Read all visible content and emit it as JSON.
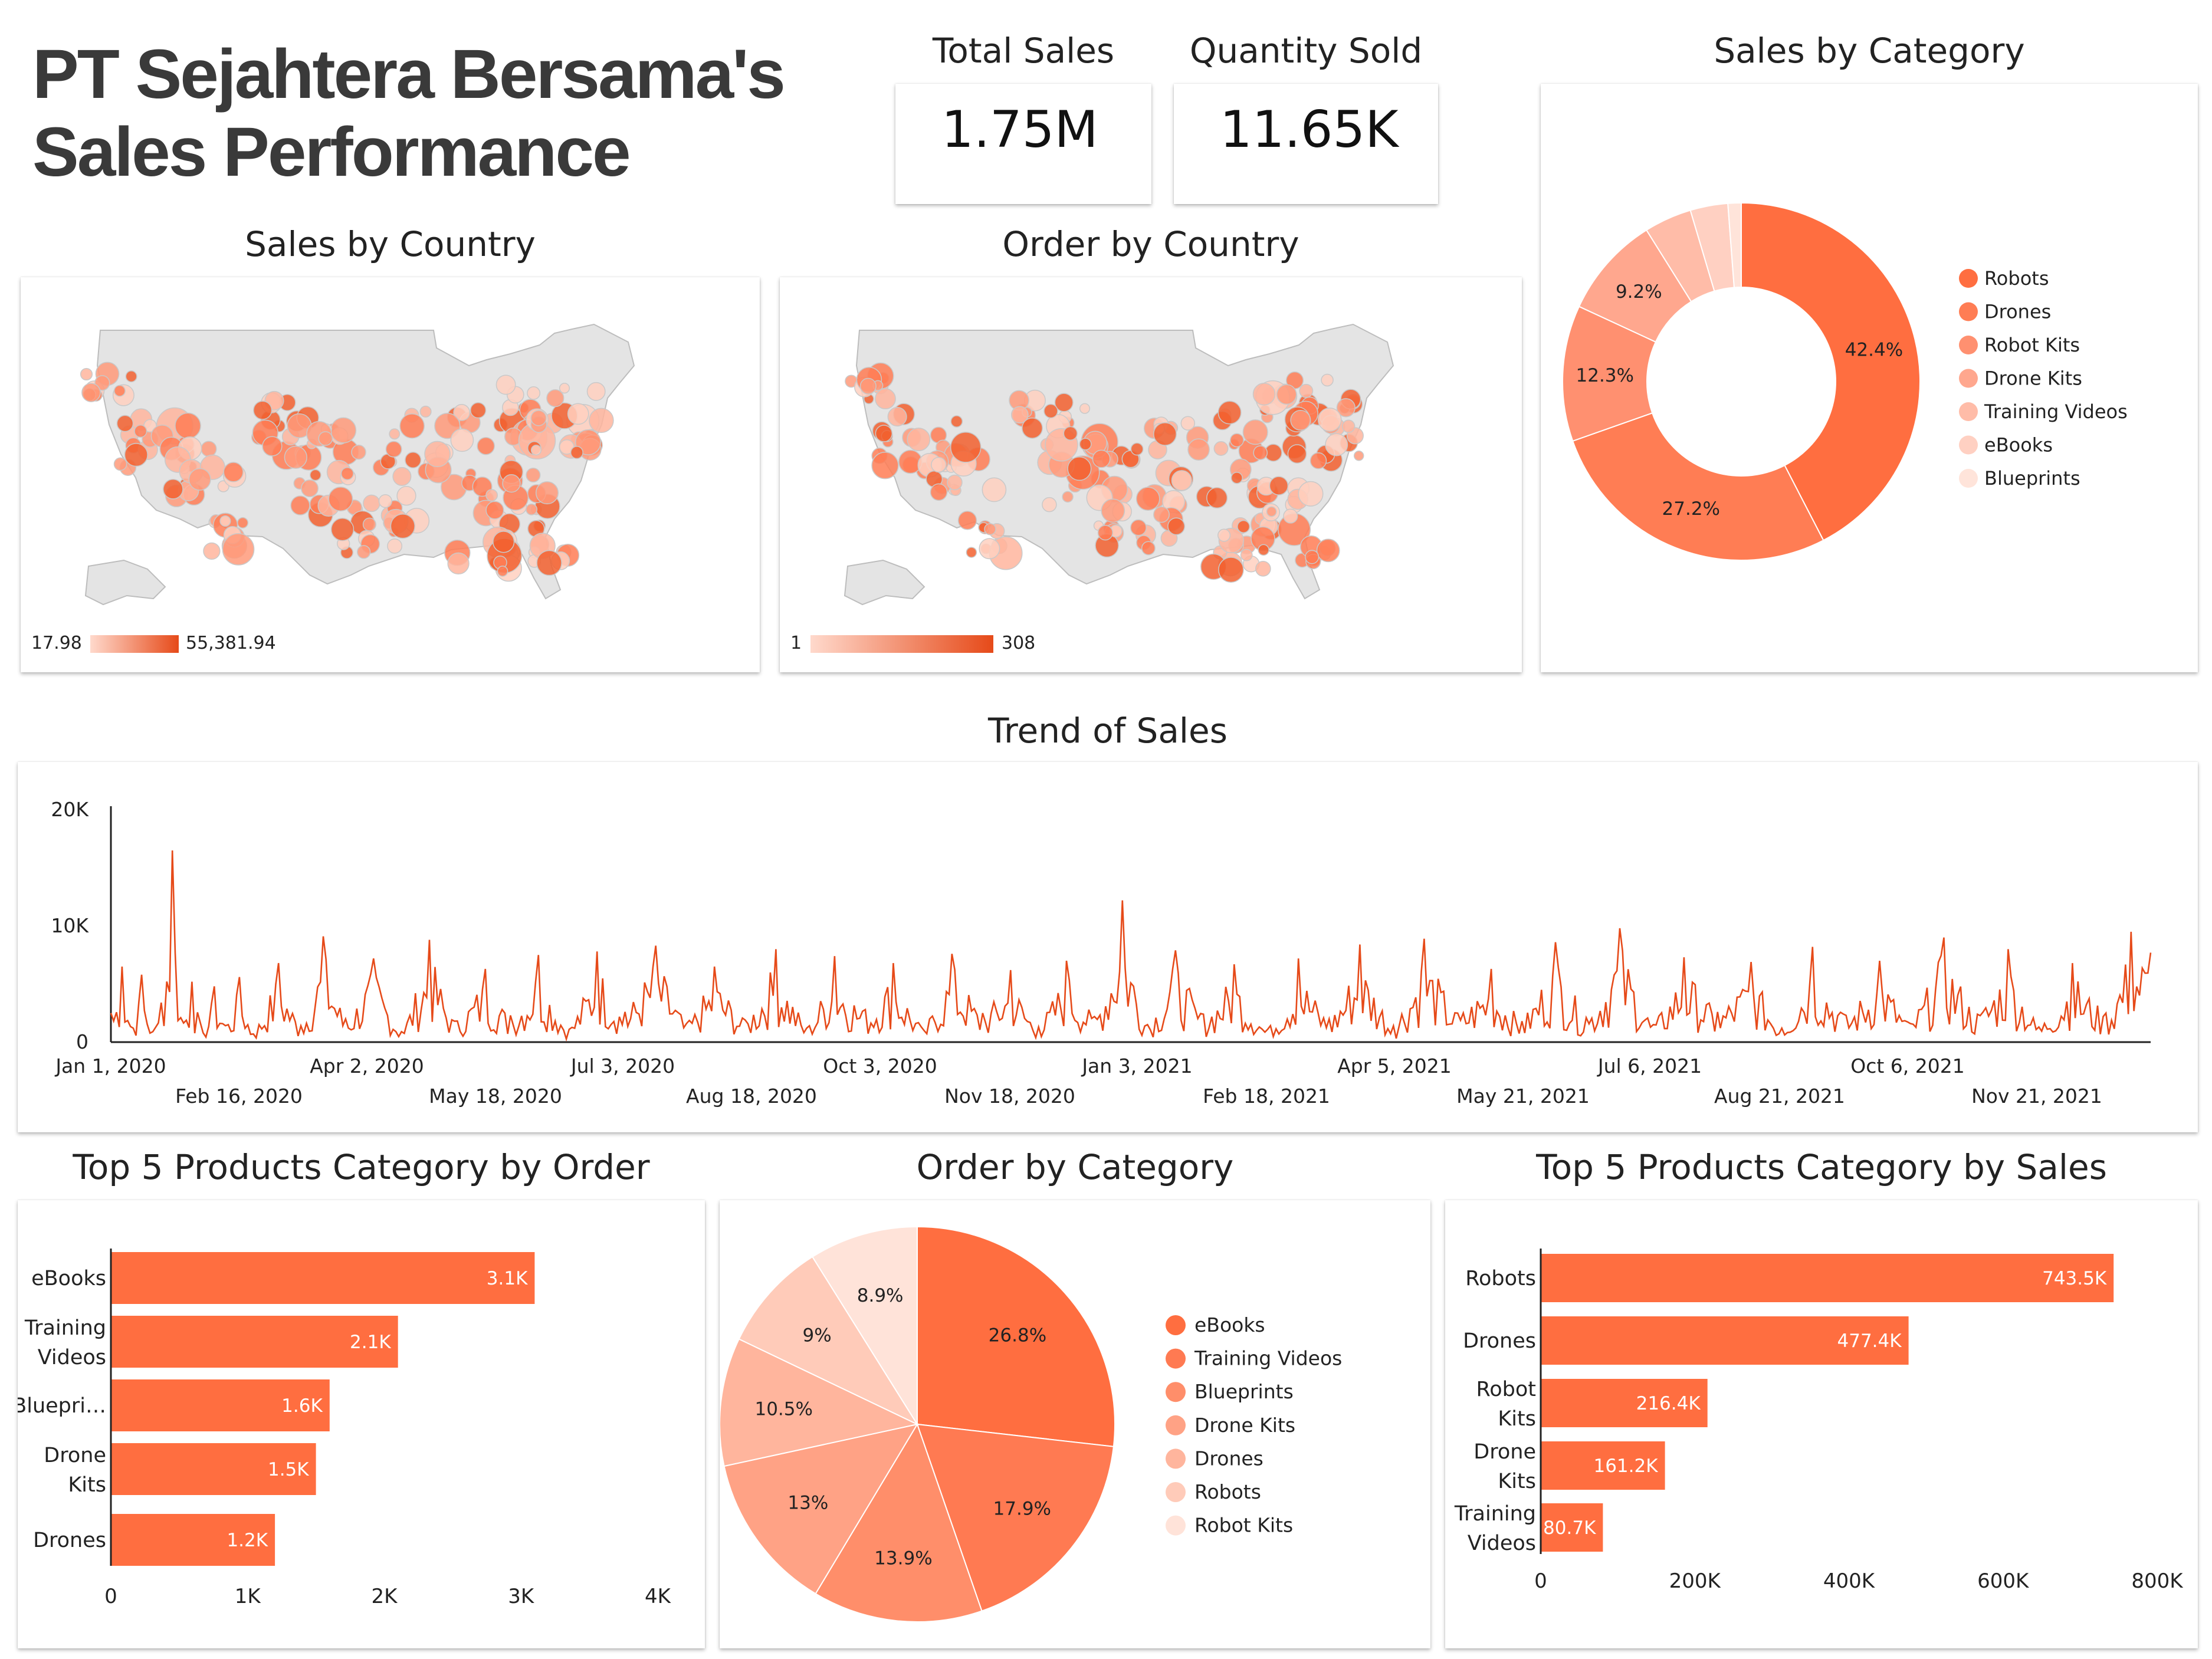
{
  "header": {
    "title": "PT Sejahtera Bersama's Sales Performance"
  },
  "kpis": [
    {
      "label": "Total Sales",
      "value": "1.75M"
    },
    {
      "label": "Quantity Sold",
      "value": "11.65K"
    }
  ],
  "colors": {
    "accent": "#ff6e40",
    "dark": "#e64a19",
    "gridline": "#dddddd"
  },
  "maps": [
    {
      "title": "Sales by Country",
      "scale_min": "17.98",
      "scale_max": "55,381.94"
    },
    {
      "title": "Order by Country",
      "scale_min": "1",
      "scale_max": "308"
    }
  ],
  "chart_data": [
    {
      "type": "pie",
      "title": "Sales by Category",
      "style": "donut",
      "legend_position": "right",
      "labels": [
        "Robots",
        "Drones",
        "Robot Kits",
        "Drone Kits",
        "Training Videos",
        "eBooks",
        "Blueprints"
      ],
      "values": [
        42.4,
        27.2,
        12.3,
        9.2,
        4.3,
        3.4,
        1.2
      ],
      "value_labels": [
        "42.4%",
        "27.2%",
        "12.3%",
        "9.2%",
        "",
        "",
        ""
      ],
      "colors": [
        "#ff6e40",
        "#ff7d54",
        "#ff9070",
        "#ffa78e",
        "#ffbca8",
        "#ffd0c2",
        "#ffe4da"
      ]
    },
    {
      "type": "line",
      "title": "Trend of Sales",
      "x_range": [
        "2020-01-01",
        "2021-12-31"
      ],
      "ylim": [
        0,
        20000
      ],
      "y_ticks": [
        "0",
        "10K",
        "20K"
      ],
      "x_ticks_top": [
        "Jan 1, 2020",
        "Apr 2, 2020",
        "Jul 3, 2020",
        "Oct 3, 2020",
        "Jan 3, 2021",
        "Apr 5, 2021",
        "Jul 6, 2021",
        "Oct 6, 2021"
      ],
      "x_ticks_bottom": [
        "Feb 16, 2020",
        "May 18, 2020",
        "Aug 18, 2020",
        "Nov 18, 2020",
        "Feb 18, 2021",
        "May 21, 2021",
        "Aug 21, 2021",
        "Nov 21, 2021"
      ],
      "series": [
        {
          "points": [
            [
              "2020-01-01",
              2500
            ],
            [
              "2020-01-05",
              6500
            ],
            [
              "2020-01-09",
              1200
            ],
            [
              "2020-01-12",
              5800
            ],
            [
              "2020-01-16",
              900
            ],
            [
              "2020-01-19",
              3400
            ],
            [
              "2020-01-23",
              16500
            ],
            [
              "2020-01-26",
              2100
            ],
            [
              "2020-01-30",
              5200
            ],
            [
              "2020-02-03",
              800
            ],
            [
              "2020-02-07",
              4800
            ],
            [
              "2020-02-12",
              1500
            ],
            [
              "2020-02-16",
              5600
            ],
            [
              "2020-02-21",
              700
            ],
            [
              "2020-03-01",
              6800
            ],
            [
              "2020-03-09",
              1400
            ],
            [
              "2020-03-17",
              9100
            ],
            [
              "2020-03-25",
              2000
            ],
            [
              "2020-04-04",
              7200
            ],
            [
              "2020-04-14",
              900
            ],
            [
              "2020-04-24",
              8800
            ],
            [
              "2020-05-03",
              1800
            ],
            [
              "2020-05-14",
              6300
            ],
            [
              "2020-05-23",
              2300
            ],
            [
              "2020-06-02",
              7500
            ],
            [
              "2020-06-13",
              1100
            ],
            [
              "2020-06-23",
              7800
            ],
            [
              "2020-07-03",
              2600
            ],
            [
              "2020-07-14",
              8300
            ],
            [
              "2020-07-25",
              1600
            ],
            [
              "2020-08-04",
              6500
            ],
            [
              "2020-08-15",
              1900
            ],
            [
              "2020-08-26",
              8000
            ],
            [
              "2020-09-06",
              1200
            ],
            [
              "2020-09-16",
              7400
            ],
            [
              "2020-09-27",
              2800
            ],
            [
              "2020-10-07",
              6800
            ],
            [
              "2020-10-18",
              1000
            ],
            [
              "2020-10-28",
              7600
            ],
            [
              "2020-11-08",
              2500
            ],
            [
              "2020-11-18",
              6200
            ],
            [
              "2020-11-28",
              1300
            ],
            [
              "2020-12-08",
              7000
            ],
            [
              "2020-12-18",
              2200
            ],
            [
              "2020-12-28",
              12200
            ],
            [
              "2021-01-06",
              1500
            ],
            [
              "2021-01-16",
              7900
            ],
            [
              "2021-01-26",
              2400
            ],
            [
              "2021-02-06",
              6700
            ],
            [
              "2021-02-18",
              1100
            ],
            [
              "2021-03-01",
              7200
            ],
            [
              "2021-03-12",
              2000
            ],
            [
              "2021-03-23",
              8400
            ],
            [
              "2021-04-04",
              1400
            ],
            [
              "2021-04-15",
              8900
            ],
            [
              "2021-04-27",
              2500
            ],
            [
              "2021-05-09",
              6300
            ],
            [
              "2021-05-20",
              1800
            ],
            [
              "2021-06-01",
              8600
            ],
            [
              "2021-06-12",
              2100
            ],
            [
              "2021-06-24",
              9800
            ],
            [
              "2021-07-06",
              1500
            ],
            [
              "2021-07-17",
              7300
            ],
            [
              "2021-07-29",
              2600
            ],
            [
              "2021-08-10",
              6900
            ],
            [
              "2021-08-21",
              1200
            ],
            [
              "2021-09-01",
              8200
            ],
            [
              "2021-09-13",
              2300
            ],
            [
              "2021-09-25",
              7000
            ],
            [
              "2021-10-06",
              1600
            ],
            [
              "2021-10-18",
              9000
            ],
            [
              "2021-10-30",
              2400
            ],
            [
              "2021-11-10",
              8000
            ],
            [
              "2021-11-21",
              1300
            ],
            [
              "2021-12-03",
              6800
            ],
            [
              "2021-12-15",
              2500
            ],
            [
              "2021-12-24",
              9500
            ],
            [
              "2021-12-31",
              7700
            ]
          ]
        }
      ]
    },
    {
      "type": "bar",
      "orientation": "horizontal",
      "title": "Top 5 Products Category by Order",
      "categories": [
        "eBooks",
        "Training Videos",
        "Bluepri…",
        "Drone Kits",
        "Drones"
      ],
      "values": [
        3100,
        2100,
        1600,
        1500,
        1200
      ],
      "value_labels": [
        "3.1K",
        "2.1K",
        "1.6K",
        "1.5K",
        "1.2K"
      ],
      "xlim": [
        0,
        4000
      ],
      "x_ticks": [
        "0",
        "1K",
        "2K",
        "3K",
        "4K"
      ]
    },
    {
      "type": "pie",
      "title": "Order by Category",
      "legend_position": "right",
      "labels": [
        "eBooks",
        "Training Videos",
        "Blueprints",
        "Drone Kits",
        "Drones",
        "Robots",
        "Robot Kits"
      ],
      "values": [
        26.8,
        17.9,
        13.9,
        13,
        10.5,
        9,
        8.9
      ],
      "value_labels": [
        "26.8%",
        "17.9%",
        "13.9%",
        "13%",
        "10.5%",
        "9%",
        "8.9%"
      ],
      "colors": [
        "#ff6e40",
        "#ff7a52",
        "#ff8e6a",
        "#ffa285",
        "#ffb59d",
        "#ffcbb9",
        "#ffe3d9"
      ]
    },
    {
      "type": "bar",
      "orientation": "horizontal",
      "title": "Top 5 Products Category by Sales",
      "categories": [
        "Robots",
        "Drones",
        "Robot Kits",
        "Drone Kits",
        "Training Videos"
      ],
      "values": [
        743.5,
        477.4,
        216.4,
        161.2,
        80.7
      ],
      "value_labels": [
        "743.5K",
        "477.4K",
        "216.4K",
        "161.2K",
        "80.7K"
      ],
      "xlim": [
        0,
        800
      ],
      "x_ticks": [
        "0",
        "200K",
        "400K",
        "600K",
        "800K"
      ]
    }
  ]
}
